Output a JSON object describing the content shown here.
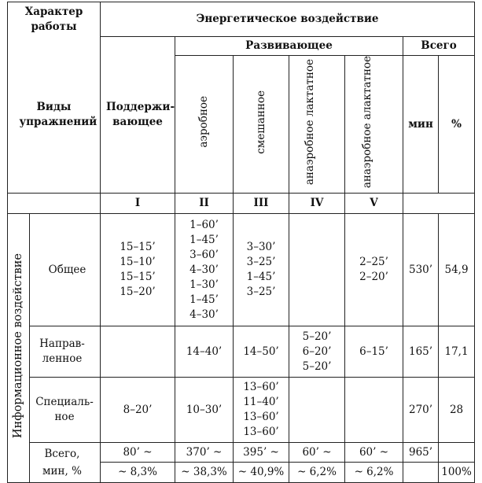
{
  "header": {
    "work_character": "Характер работы",
    "energy_effect": "Энергетическое воздействие",
    "exercise_types": "Виды упражнений",
    "maintaining": "Поддержи-вающее",
    "developing": "Развивающее",
    "total": "Всего",
    "aerobic": "аэробное",
    "mixed": "смешанное",
    "anaerobic_lactate": "анаэробное лактатное",
    "anaerobic_alactate": "анаэробное алактатное",
    "min": "мин",
    "percent": "%",
    "roman": [
      "I",
      "II",
      "III",
      "IV",
      "V"
    ]
  },
  "info_effect": "Информационное воздействие",
  "rows": {
    "general": {
      "label": "Общее",
      "c1": [
        "15–15’",
        "15–10’",
        "15–15’",
        "15–20’"
      ],
      "c2": [
        "1–60’",
        "1–45’",
        "3–60’",
        "4–30’",
        "1–30’",
        "1–45’",
        "4–30’"
      ],
      "c3": [
        "3–30’",
        "3–25’",
        "1–45’",
        "3–25’"
      ],
      "c5": [
        "2–25’",
        "2–20’"
      ],
      "min": "530’",
      "pct": "54,9"
    },
    "directed": {
      "label": "Направ-ленное",
      "c2": "14–40’",
      "c3": "14–50’",
      "c4": [
        "5–20’",
        "6–20’",
        "5–20’"
      ],
      "c5": "6–15’",
      "min": "165’",
      "pct": "17,1"
    },
    "special": {
      "label": "Специаль-ное",
      "c1": "8–20’",
      "c2": "10–30’",
      "c3": [
        "13–60’",
        "11–40’",
        "13–60’",
        "13–60’"
      ],
      "min": "270’",
      "pct": "28"
    },
    "total": {
      "label": "Всего, мин, %",
      "min": [
        "80’ ~",
        "370’ ~",
        "395’ ~",
        "60’ ~",
        "60’ ~"
      ],
      "pct": [
        "~ 8,3%",
        "~ 38,3%",
        "~ 40,9%",
        "~ 6,2%",
        "~ 6,2%"
      ],
      "total_min": "965’",
      "total_pct": "100%"
    }
  }
}
